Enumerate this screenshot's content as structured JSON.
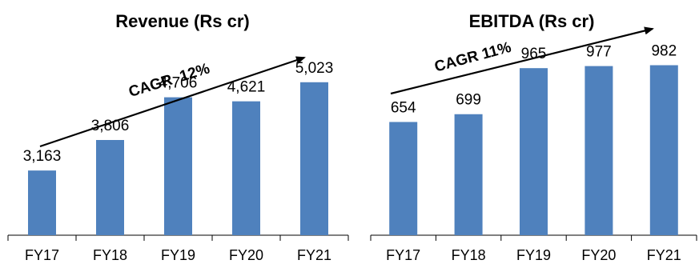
{
  "colors": {
    "bar": "#4f81bd",
    "axis": "#000000",
    "arrow": "#000000"
  },
  "chart_data": [
    {
      "type": "bar",
      "title": "Revenue (Rs cr)",
      "categories": [
        "FY17",
        "FY18",
        "FY19",
        "FY20",
        "FY21"
      ],
      "values": [
        3163,
        3806,
        4706,
        4621,
        5023
      ],
      "value_labels": [
        "3,163",
        "3,806",
        "4,706",
        "4,621",
        "5,023"
      ],
      "annotation": "CAGR  12%",
      "ylim": [
        1800,
        6250
      ],
      "grid": false,
      "legend": "none"
    },
    {
      "type": "bar",
      "title": "EBITDA (Rs cr)",
      "categories": [
        "FY17",
        "FY18",
        "FY19",
        "FY20",
        "FY21"
      ],
      "values": [
        654,
        699,
        965,
        977,
        982
      ],
      "value_labels": [
        "654",
        "699",
        "965",
        "977",
        "982"
      ],
      "annotation": "CAGR 11%",
      "ylim": [
        0,
        1220
      ],
      "grid": false,
      "legend": "none"
    }
  ]
}
